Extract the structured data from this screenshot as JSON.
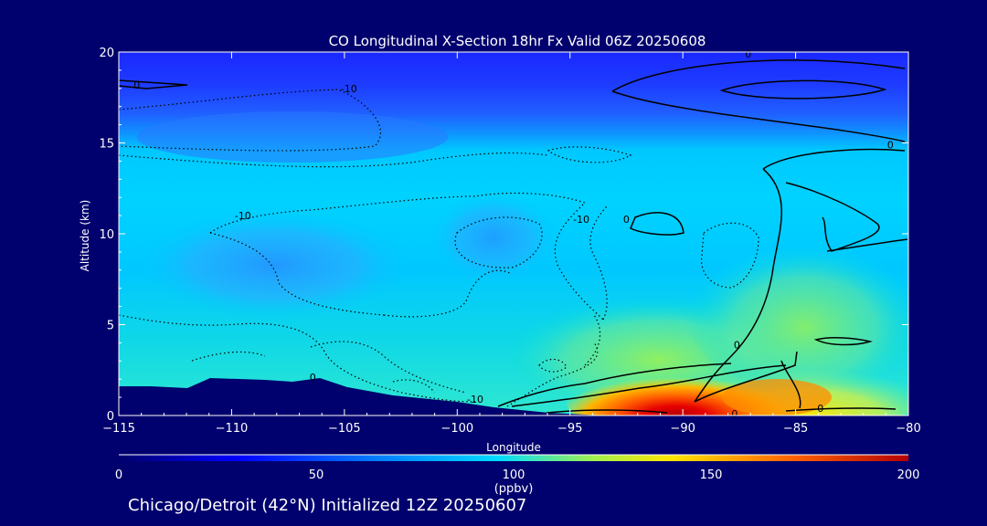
{
  "chart_data": {
    "type": "heatmap",
    "title": "CO Longitudinal X-Section 18hr  Fx Valid 06Z 20250608",
    "xlabel": "Longitude",
    "ylabel": "Altitude (km)",
    "xlim": [
      -115,
      -80
    ],
    "ylim": [
      0,
      20
    ],
    "x_ticks": [
      "-115",
      "-110",
      "-105",
      "-100",
      "-95",
      "-90",
      "-85",
      "-80"
    ],
    "y_ticks": [
      "0",
      "5",
      "10",
      "15",
      "20"
    ],
    "colorbar": {
      "min": 0,
      "max": 200,
      "ticks": [
        "0",
        "50",
        "100",
        "150",
        "200"
      ],
      "label": "(ppbv)"
    },
    "contour_labels": [
      {
        "text": "-10",
        "lon": -109.5,
        "alt": 11.0
      },
      {
        "text": "-10",
        "lon": -94.5,
        "alt": 10.8
      },
      {
        "text": "-10",
        "lon": -104.8,
        "alt": 18.0
      },
      {
        "text": "-10",
        "lon": -99.2,
        "alt": 0.9
      },
      {
        "text": "0",
        "lon": -114.2,
        "alt": 18.2
      },
      {
        "text": "0",
        "lon": -87.1,
        "alt": 19.9
      },
      {
        "text": "0",
        "lon": -80.8,
        "alt": 14.9
      },
      {
        "text": "0",
        "lon": -92.5,
        "alt": 10.8
      },
      {
        "text": "0",
        "lon": -87.6,
        "alt": 3.9
      },
      {
        "text": "0",
        "lon": -106.4,
        "alt": 2.1
      },
      {
        "text": "0",
        "lon": -87.7,
        "alt": 0.1
      },
      {
        "text": "0",
        "lon": -83.9,
        "alt": 0.4
      }
    ],
    "color_scale": [
      "#0000ff",
      "#0078ff",
      "#00dcff",
      "#ffe600",
      "#ff6400",
      "#b40000"
    ],
    "terrain_color": "#00006e"
  },
  "footer": "Chicago/Detroit (42°N) Initialized 12Z 20250607"
}
